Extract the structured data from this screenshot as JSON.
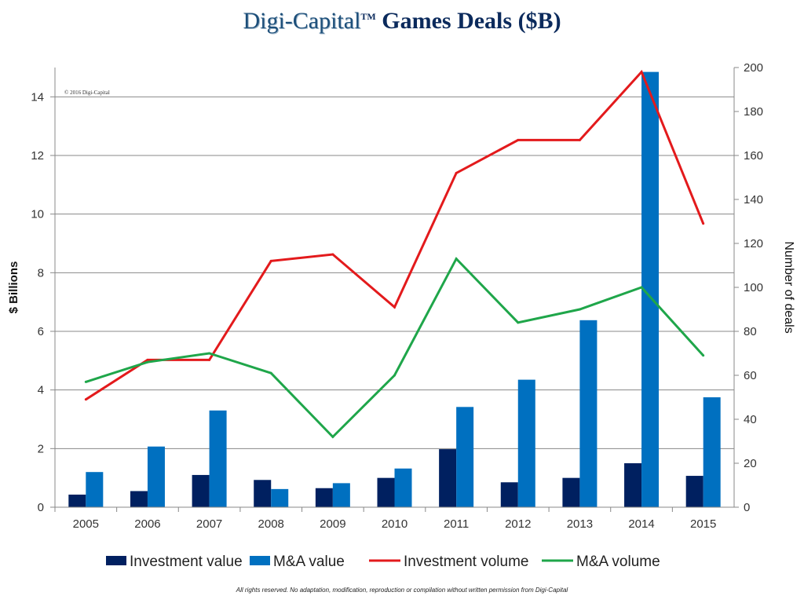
{
  "title": {
    "logo": "Digi-Capital",
    "tm": "TM",
    "text": "Games Deals ($B)"
  },
  "copyright": "© 2016 Digi-Capital",
  "footer": "All rights reserved. No adaptation, modification, reproduction or compilation without written permission from Digi-Capital",
  "chart_data": {
    "type": "bar+line",
    "categories": [
      "2005",
      "2006",
      "2007",
      "2008",
      "2009",
      "2010",
      "2011",
      "2012",
      "2013",
      "2014",
      "2015"
    ],
    "ylabel": "$ Billions",
    "y2label": "Number of deals",
    "ylim": [
      0,
      15
    ],
    "yticks": [
      0,
      2,
      4,
      6,
      8,
      10,
      12,
      14
    ],
    "y2lim": [
      0,
      200
    ],
    "y2ticks": [
      0,
      20,
      40,
      60,
      80,
      100,
      120,
      140,
      160,
      180,
      200
    ],
    "grid": true,
    "legend": "bottom",
    "series": [
      {
        "name": "Investment value",
        "type": "bar",
        "axis": "left",
        "color": "#002060",
        "values": [
          0.43,
          0.55,
          1.1,
          0.93,
          0.65,
          1.0,
          1.98,
          0.85,
          1.0,
          1.5,
          1.07
        ]
      },
      {
        "name": "M&A value",
        "type": "bar",
        "axis": "left",
        "color": "#0070c0",
        "values": [
          1.2,
          2.07,
          3.3,
          0.62,
          0.82,
          1.32,
          3.42,
          4.35,
          6.38,
          14.85,
          3.75
        ]
      },
      {
        "name": "Investment volume",
        "type": "line",
        "axis": "right",
        "color": "#e31a1c",
        "values": [
          49,
          67,
          67,
          112,
          115,
          91,
          152,
          167,
          167,
          198,
          129
        ]
      },
      {
        "name": "M&A volume",
        "type": "line",
        "axis": "right",
        "color": "#1fa64a",
        "values": [
          57,
          66,
          70,
          61,
          32,
          60,
          113,
          84,
          90,
          100,
          69
        ]
      }
    ]
  }
}
